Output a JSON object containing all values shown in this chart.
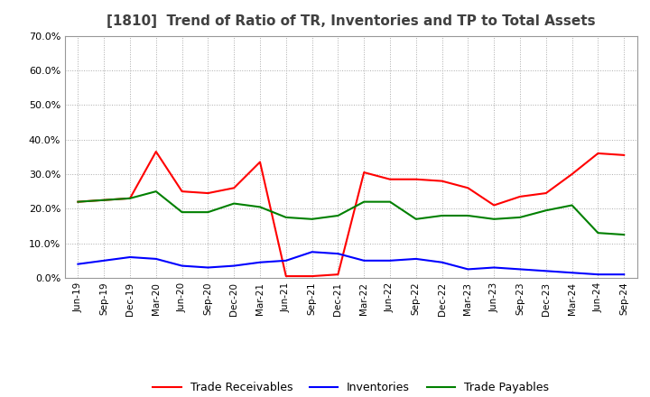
{
  "title": "[1810]  Trend of Ratio of TR, Inventories and TP to Total Assets",
  "labels": [
    "Jun-19",
    "Sep-19",
    "Dec-19",
    "Mar-20",
    "Jun-20",
    "Sep-20",
    "Dec-20",
    "Mar-21",
    "Jun-21",
    "Sep-21",
    "Dec-21",
    "Mar-22",
    "Jun-22",
    "Sep-22",
    "Dec-22",
    "Mar-23",
    "Jun-23",
    "Sep-23",
    "Dec-23",
    "Mar-24",
    "Jun-24",
    "Sep-24"
  ],
  "trade_receivables": [
    22.0,
    22.5,
    23.0,
    36.5,
    25.0,
    24.5,
    26.0,
    33.5,
    0.5,
    0.5,
    1.0,
    30.5,
    28.5,
    28.5,
    28.0,
    26.0,
    21.0,
    23.5,
    24.5,
    30.0,
    36.0,
    35.5
  ],
  "inventories": [
    4.0,
    5.0,
    6.0,
    5.5,
    3.5,
    3.0,
    3.5,
    4.5,
    5.0,
    7.5,
    7.0,
    5.0,
    5.0,
    5.5,
    4.5,
    2.5,
    3.0,
    2.5,
    2.0,
    1.5,
    1.0,
    1.0
  ],
  "trade_payables": [
    22.0,
    22.5,
    23.0,
    25.0,
    19.0,
    19.0,
    21.5,
    20.5,
    17.5,
    17.0,
    18.0,
    22.0,
    22.0,
    17.0,
    18.0,
    18.0,
    17.0,
    17.5,
    19.5,
    21.0,
    13.0,
    12.5
  ],
  "tr_color": "#FF0000",
  "inv_color": "#0000FF",
  "tp_color": "#008000",
  "background_color": "#FFFFFF",
  "grid_color": "#AAAAAA",
  "ylim": [
    0,
    70
  ],
  "yticks": [
    0,
    10,
    20,
    30,
    40,
    50,
    60,
    70
  ],
  "legend_labels": [
    "Trade Receivables",
    "Inventories",
    "Trade Payables"
  ],
  "title_fontsize": 11,
  "title_color": "#404040"
}
